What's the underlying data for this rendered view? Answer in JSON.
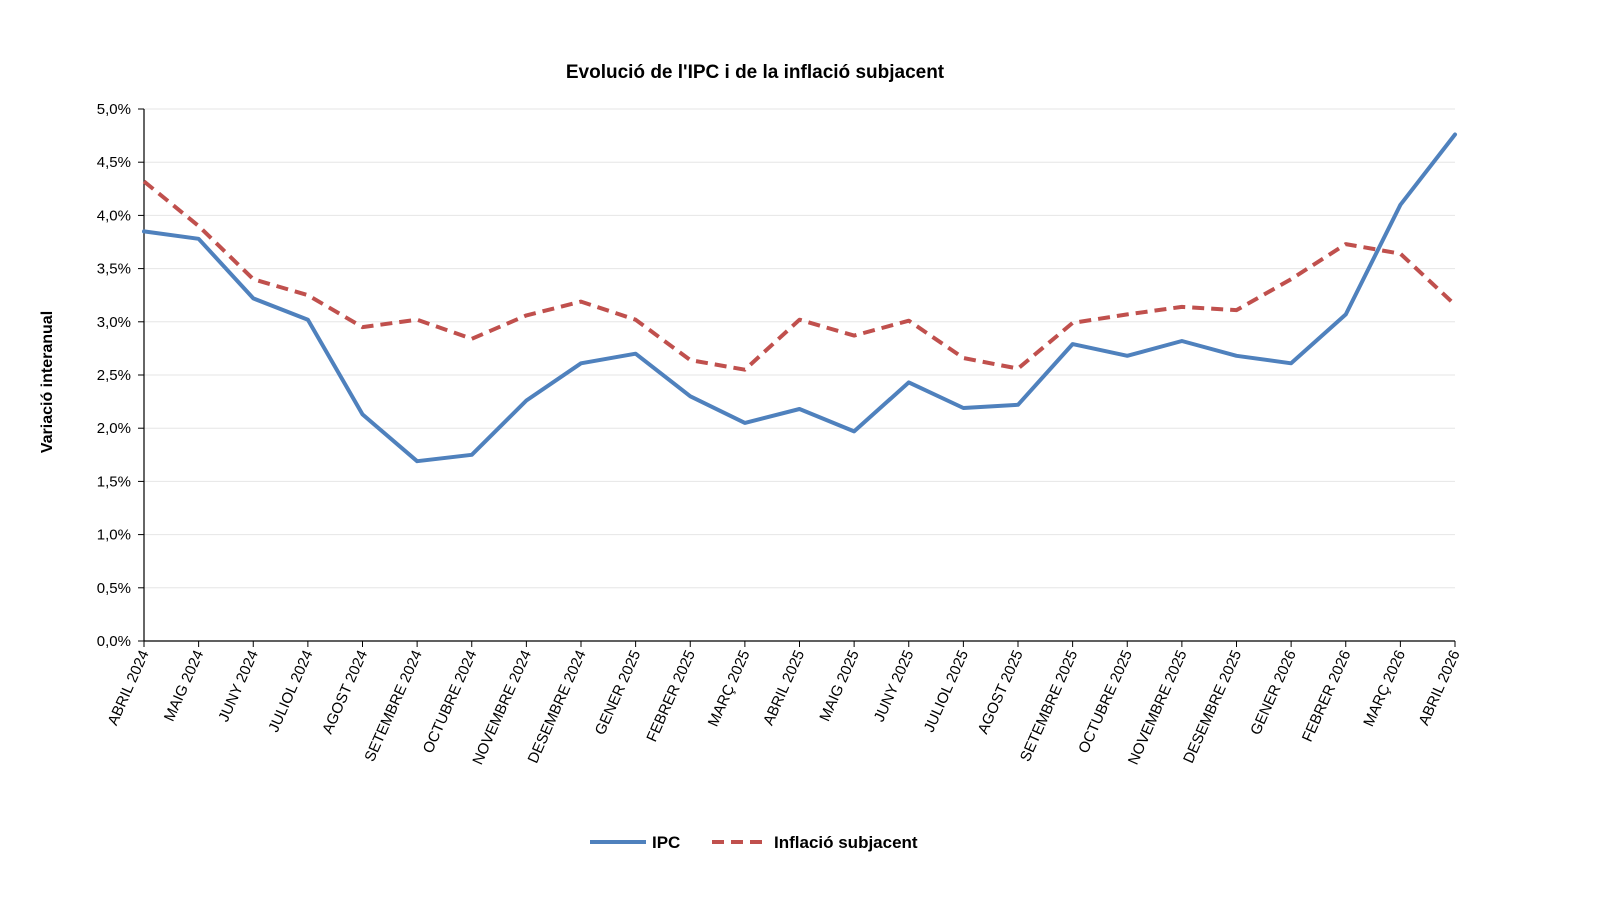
{
  "chart_data": {
    "type": "line",
    "title": "Evolució de l'IPC i de la inflació subjacent",
    "xlabel": "",
    "ylabel": "Variació interanual",
    "ylim": [
      0,
      5
    ],
    "yticks": [
      "0,0%",
      "0,5%",
      "1,0%",
      "1,5%",
      "2,0%",
      "2,5%",
      "3,0%",
      "3,5%",
      "4,0%",
      "4,5%",
      "5,0%"
    ],
    "grid": true,
    "legend_position": "bottom",
    "categories": [
      "ABRIL 2024",
      "MAIG 2024",
      "JUNY 2024",
      "JULIOL 2024",
      "AGOST 2024",
      "SETEMBRE 2024",
      "OCTUBRE 2024",
      "NOVEMBRE 2024",
      "DESEMBRE 2024",
      "GENER 2025",
      "FEBRER 2025",
      "MARÇ 2025",
      "ABRIL 2025",
      "MAIG 2025",
      "JUNY 2025",
      "JULIOL 2025",
      "AGOST 2025",
      "SETEMBRE 2025",
      "OCTUBRE 2025",
      "NOVEMBRE 2025",
      "DESEMBRE 2025",
      "GENER 2026",
      "FEBRER 2026",
      "MARÇ 2026",
      "ABRIL 2026"
    ],
    "series": [
      {
        "name": "IPC",
        "color": "#4F81BD",
        "dash": "solid",
        "values": [
          3.85,
          3.78,
          3.22,
          3.02,
          2.13,
          1.69,
          1.75,
          2.26,
          2.61,
          2.7,
          2.3,
          2.05,
          2.18,
          1.97,
          2.43,
          2.19,
          2.22,
          2.79,
          2.68,
          2.82,
          2.68,
          2.61,
          3.07,
          4.1,
          4.76
        ]
      },
      {
        "name": "Inflació subjacent",
        "color": "#C0504D",
        "dash": "dashed",
        "values": [
          4.32,
          3.9,
          3.4,
          3.25,
          2.95,
          3.02,
          2.84,
          3.06,
          3.19,
          3.02,
          2.64,
          2.55,
          3.02,
          2.87,
          3.01,
          2.66,
          2.56,
          2.99,
          3.07,
          3.14,
          3.11,
          3.4,
          3.73,
          3.64,
          3.16
        ]
      }
    ]
  }
}
